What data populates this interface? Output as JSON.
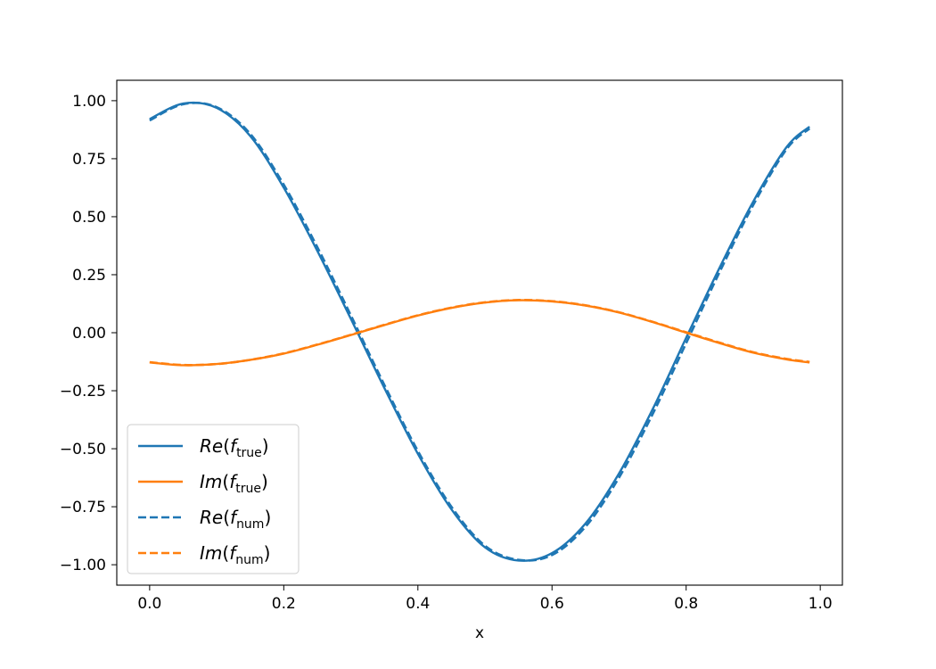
{
  "chart_data": {
    "type": "line",
    "title": "",
    "xlabel": "x",
    "ylabel": "",
    "xlim": [
      -0.049,
      1.033
    ],
    "ylim": [
      -1.088,
      1.088
    ],
    "xticks": [
      0.0,
      0.2,
      0.4,
      0.6,
      0.8,
      1.0
    ],
    "xtick_labels": [
      "0.0",
      "0.2",
      "0.4",
      "0.6",
      "0.8",
      "1.0"
    ],
    "yticks": [
      1.0,
      0.75,
      0.5,
      0.25,
      0.0,
      -0.25,
      -0.5,
      -0.75,
      -1.0
    ],
    "ytick_labels": [
      "1.00",
      "0.75",
      "0.50",
      "0.25",
      "0.00",
      "−0.25",
      "−0.50",
      "−0.75",
      "−1.00"
    ],
    "grid": false,
    "legend_placement": "lower-left",
    "x": [
      0.0,
      0.05,
      0.1,
      0.15,
      0.2,
      0.25,
      0.3,
      0.35,
      0.4,
      0.45,
      0.5,
      0.55,
      0.6,
      0.65,
      0.7,
      0.75,
      0.8,
      0.85,
      0.9,
      0.95,
      0.984
    ],
    "series": [
      {
        "name_main": "Re(",
        "name_sub": "true",
        "name_end": ")",
        "style": "solid",
        "color": "#1f77b4",
        "values": [
          0.921,
          0.988,
          0.969,
          0.848,
          0.625,
          0.353,
          0.06,
          -0.238,
          -0.522,
          -0.761,
          -0.925,
          -0.982,
          -0.95,
          -0.822,
          -0.606,
          -0.33,
          -0.022,
          0.281,
          0.565,
          0.801,
          0.888
        ]
      },
      {
        "name_main": "Im(",
        "name_sub": "true",
        "name_end": ")",
        "style": "solid",
        "color": "#ff7f0e",
        "values": [
          -0.128,
          -0.14,
          -0.135,
          -0.117,
          -0.09,
          -0.052,
          -0.01,
          0.033,
          0.074,
          0.107,
          0.13,
          0.14,
          0.135,
          0.117,
          0.087,
          0.046,
          0.0,
          -0.045,
          -0.086,
          -0.115,
          -0.128
        ]
      },
      {
        "name_main": "Re(",
        "name_sub": "num",
        "name_end": ")",
        "style": "dashed",
        "color": "#1f77b4",
        "values": [
          0.915,
          0.985,
          0.972,
          0.857,
          0.638,
          0.369,
          0.075,
          -0.225,
          -0.51,
          -0.75,
          -0.918,
          -0.979,
          -0.958,
          -0.836,
          -0.624,
          -0.351,
          -0.045,
          0.262,
          0.55,
          0.792,
          0.88
        ]
      },
      {
        "name_main": "Im(",
        "name_sub": "num",
        "name_end": ")",
        "style": "dashed",
        "color": "#ff7f0e",
        "values": [
          -0.127,
          -0.139,
          -0.135,
          -0.117,
          -0.089,
          -0.051,
          -0.009,
          0.034,
          0.075,
          0.108,
          0.131,
          0.141,
          0.136,
          0.118,
          0.088,
          0.047,
          0.002,
          -0.043,
          -0.084,
          -0.113,
          -0.126
        ]
      }
    ]
  }
}
